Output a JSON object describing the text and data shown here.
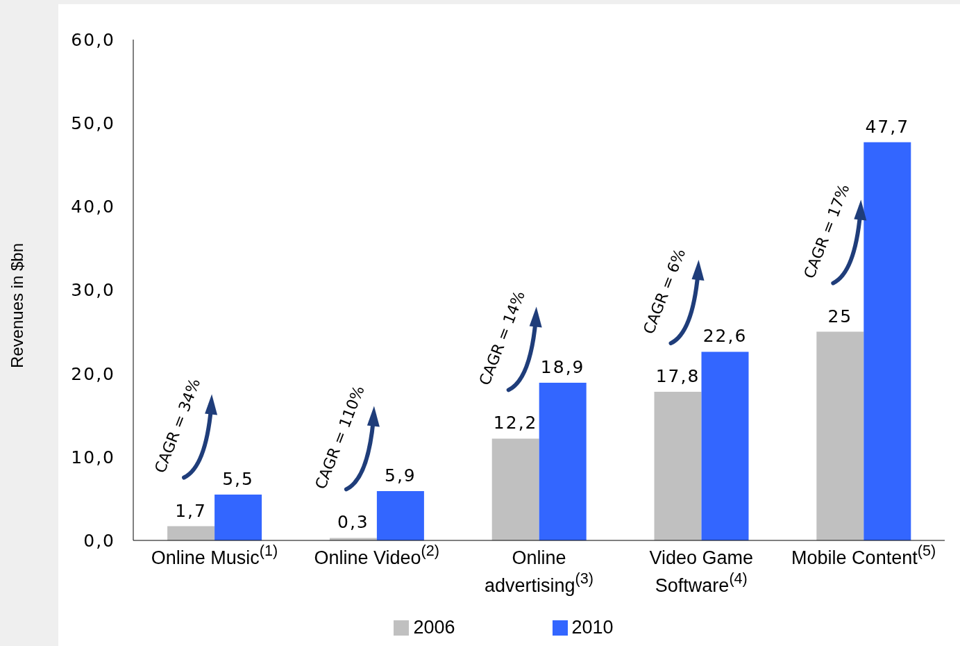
{
  "chart_data": {
    "type": "bar",
    "ylabel": "Revenues in $bn",
    "categories": [
      "Online Music$^{(1)}$",
      "Online Video$^{(2)}$",
      "Online advertising$^{(3)}$",
      "Video Game Software$^{(4)}$",
      "Mobile Content$^{(5)}$"
    ],
    "series": [
      {
        "name": "2006",
        "color": "#c0c0c0",
        "values": [
          1.7,
          0.3,
          12.2,
          17.8,
          25
        ],
        "value_labels": [
          "1,7",
          "0,3",
          "12,2",
          "17,8",
          "25"
        ]
      },
      {
        "name": "2010",
        "color": "#3366ff",
        "values": [
          5.5,
          5.9,
          18.9,
          22.6,
          47.7
        ],
        "value_labels": [
          "5,5",
          "5,9",
          "18,9",
          "22,6",
          "47,7"
        ]
      }
    ],
    "ylim": [
      0,
      60
    ],
    "yticks": [
      {
        "value": 0,
        "label": "0,0"
      },
      {
        "value": 10,
        "label": "10,0"
      },
      {
        "value": 20,
        "label": "20,0"
      },
      {
        "value": 30,
        "label": "30,0"
      },
      {
        "value": 40,
        "label": "40,0"
      },
      {
        "value": 50,
        "label": "50,0"
      },
      {
        "value": 60,
        "label": "60,0"
      }
    ],
    "annotations": [
      "CAGR = 34%",
      "CAGR = 110%",
      "CAGR = 14%",
      "CAGR = 6%",
      "CAGR = 17%"
    ],
    "grid": false,
    "legend": "bottom"
  }
}
